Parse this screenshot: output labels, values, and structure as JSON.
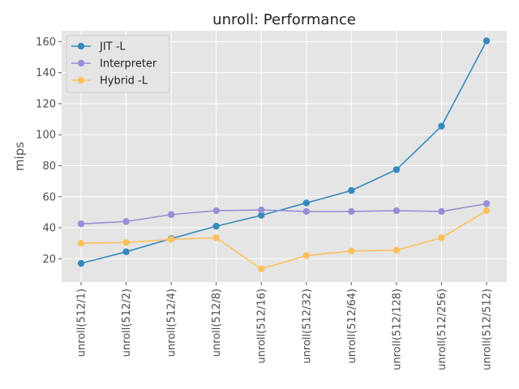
{
  "chart_data": {
    "type": "line",
    "title": "unroll: Performance",
    "xlabel": "",
    "ylabel": "mips",
    "categories": [
      "unroll(512/1)",
      "unroll(512/2)",
      "unroll(512/4)",
      "unroll(512/8)",
      "unroll(512/16)",
      "unroll(512/32)",
      "unroll(512/64)",
      "unroll(512/128)",
      "unroll(512/256)",
      "unroll(512/512)"
    ],
    "ylim": [
      5,
      167
    ],
    "yticks": [
      20,
      40,
      60,
      80,
      100,
      120,
      140,
      160
    ],
    "grid": true,
    "legend_position": "top-left",
    "series": [
      {
        "name": "JIT -L",
        "color": "#348abd",
        "values": [
          17,
          24.5,
          33,
          41,
          48,
          56,
          64,
          77.5,
          105.5,
          160.5
        ]
      },
      {
        "name": "Interpreter",
        "color": "#988ed5",
        "values": [
          42.5,
          44,
          48.5,
          51,
          51.5,
          50.5,
          50.5,
          51,
          50.5,
          55.5
        ]
      },
      {
        "name": "Hybrid -L",
        "color": "#fbc15e",
        "values": [
          30,
          30.5,
          32.5,
          33.5,
          13.5,
          22,
          25,
          25.5,
          33.5,
          51
        ]
      }
    ],
    "style": {
      "plot_bg": "#e5e5e5",
      "grid_color": "#ffffff"
    }
  }
}
